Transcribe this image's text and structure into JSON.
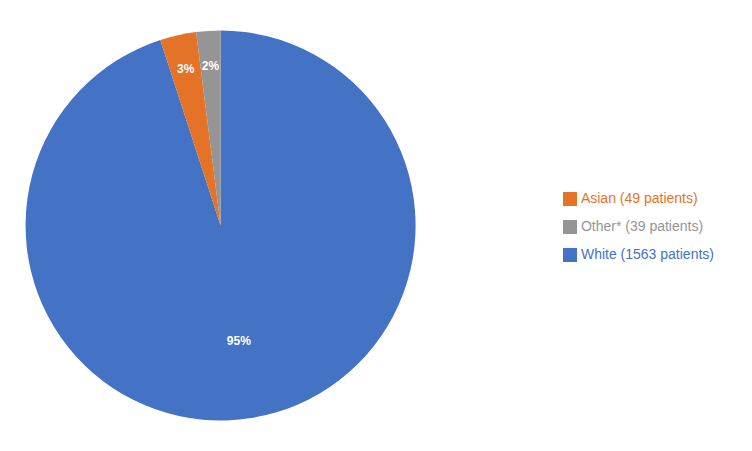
{
  "chart_data": {
    "type": "pie",
    "categories": [
      "White (1563 patients)",
      "Asian (49 patients)",
      "Other* (39 patients)"
    ],
    "values": [
      95,
      3,
      2
    ],
    "value_labels": [
      "95%",
      "3%",
      "2%"
    ],
    "colors": [
      "#4472c4",
      "#e47328",
      "#959595"
    ],
    "data_labels": true,
    "legend": "right"
  }
}
